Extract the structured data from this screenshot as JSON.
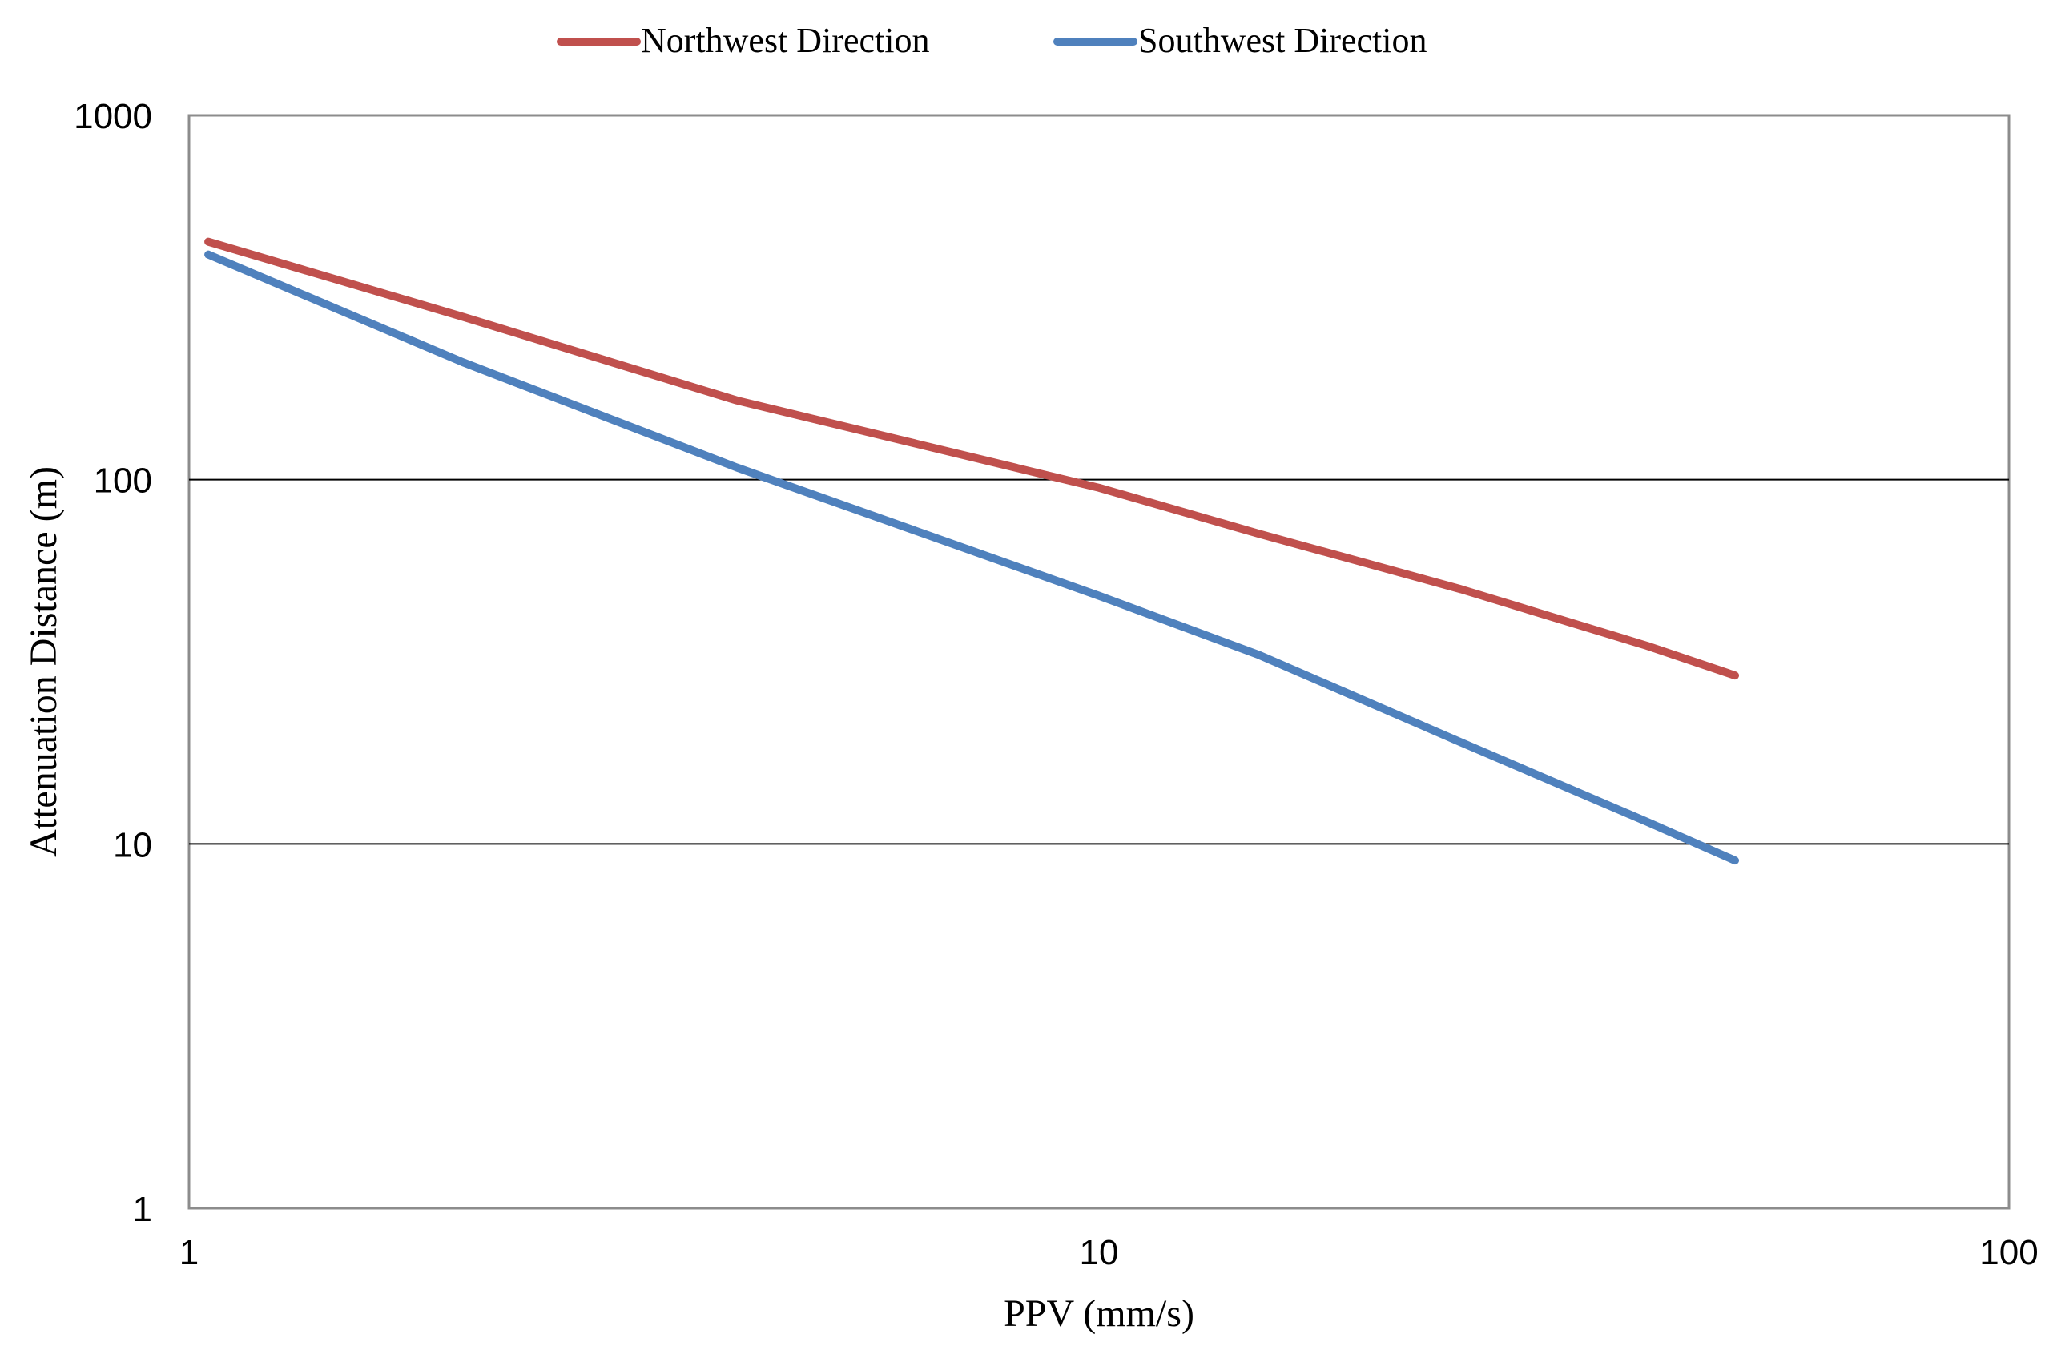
{
  "chart_data": {
    "type": "line",
    "title": "",
    "xlabel": "PPV (mm/s)",
    "ylabel": "Attenuation Distance (m)",
    "xscale": "log",
    "yscale": "log",
    "xlim": [
      1,
      100
    ],
    "ylim": [
      1,
      1000
    ],
    "xticks": [
      1,
      10,
      100
    ],
    "xtick_labels": [
      "1",
      "10",
      "100"
    ],
    "yticks": [
      1,
      10,
      100,
      1000
    ],
    "ytick_labels": [
      "1",
      "10",
      "100",
      "1000"
    ],
    "grid": "horizontal major lines",
    "legend_position": "top-center",
    "series": [
      {
        "name": "Northwest Direction",
        "color": "#C0504D",
        "x": [
          1.05,
          2,
          4,
          10,
          15,
          25,
          40,
          50
        ],
        "y": [
          450,
          280,
          165,
          95,
          71,
          50,
          35,
          29
        ]
      },
      {
        "name": "Southwest Direction",
        "color": "#4F81BD",
        "x": [
          1.05,
          2,
          4,
          10,
          15,
          25,
          40,
          50
        ],
        "y": [
          415,
          210,
          108,
          48,
          33,
          19,
          11.5,
          9
        ]
      }
    ]
  }
}
